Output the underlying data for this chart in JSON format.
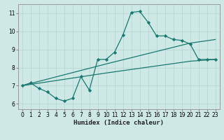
{
  "xlabel": "Humidex (Indice chaleur)",
  "bg_color": "#cde8e5",
  "grid_color": "#b8d8d5",
  "line_color": "#1a7870",
  "xlim": [
    -0.5,
    23.5
  ],
  "ylim": [
    5.7,
    11.5
  ],
  "xticks": [
    0,
    1,
    2,
    3,
    4,
    5,
    6,
    7,
    8,
    9,
    10,
    11,
    12,
    13,
    14,
    15,
    16,
    17,
    18,
    19,
    20,
    21,
    22,
    23
  ],
  "yticks": [
    6,
    7,
    8,
    9,
    10,
    11
  ],
  "series_main": {
    "x": [
      0,
      1,
      2,
      3,
      4,
      5,
      6,
      7,
      8,
      9,
      10,
      11,
      12,
      13,
      14,
      15,
      16,
      17,
      18,
      19,
      20,
      21,
      22,
      23
    ],
    "y": [
      7.0,
      7.15,
      6.85,
      6.65,
      6.3,
      6.15,
      6.3,
      7.5,
      6.75,
      8.45,
      8.45,
      8.85,
      9.8,
      11.05,
      11.1,
      10.5,
      9.75,
      9.75,
      9.55,
      9.5,
      9.3,
      8.45,
      8.45,
      8.45
    ]
  },
  "series_upper": {
    "x": [
      0,
      10,
      20,
      23
    ],
    "y": [
      7.0,
      8.2,
      9.35,
      9.55
    ]
  },
  "series_lower": {
    "x": [
      0,
      10,
      20,
      23
    ],
    "y": [
      7.0,
      7.7,
      8.35,
      8.45
    ]
  },
  "tick_fontsize": 5.5,
  "xlabel_fontsize": 6.5
}
